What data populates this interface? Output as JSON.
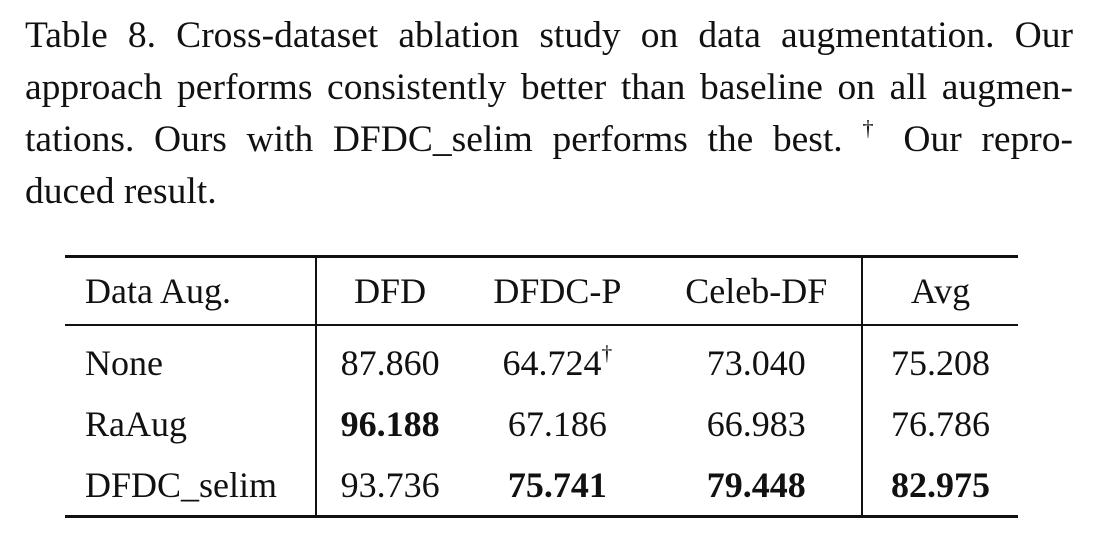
{
  "caption": {
    "lines": [
      "Table 8. Cross-dataset ablation study on data augmentation. Our",
      "approach performs consistently better than baseline on all augmen-",
      "tations. Ours with DFDC_selim performs the best.",
      "duced result."
    ],
    "dagger": "†",
    "line3_tail": " Our repro-"
  },
  "table": {
    "headers": [
      "Data Aug.",
      "DFD",
      "DFDC-P",
      "Celeb-DF",
      "Avg"
    ],
    "rows": [
      {
        "name": "None",
        "dfd": "87.860",
        "dfdcp": "64.724",
        "dfdcp_mark": "†",
        "celeb": "73.040",
        "avg": "75.208"
      },
      {
        "name": "RaAug",
        "dfd": "96.188",
        "dfdcp": "67.186",
        "celeb": "66.983",
        "avg": "76.786"
      },
      {
        "name": "DFDC_selim",
        "dfd": "93.736",
        "dfdcp": "75.741",
        "celeb": "79.448",
        "avg": "82.975"
      }
    ],
    "bold_cells": [
      "RaAug/DFD",
      "DFDC_selim/DFDC-P",
      "DFDC_selim/Celeb-DF",
      "DFDC_selim/Avg"
    ]
  }
}
